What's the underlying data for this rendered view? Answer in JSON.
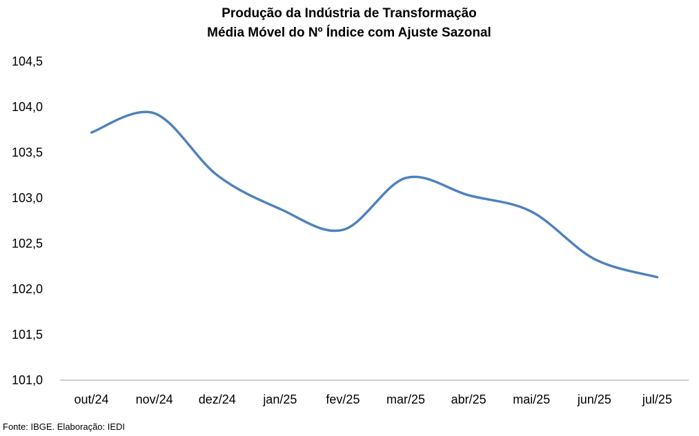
{
  "chart_data": {
    "type": "line",
    "title": "Produção da Indústria de Transformação",
    "subtitle": "Média Móvel do Nº Índice com Ajuste Sazonal",
    "xlabel": "",
    "ylabel": "",
    "categories": [
      "out/24",
      "nov/24",
      "dez/24",
      "jan/25",
      "fev/25",
      "mar/25",
      "abr/25",
      "mai/25",
      "jun/25",
      "jul/25"
    ],
    "series": [
      {
        "values": [
          103.72,
          103.93,
          103.25,
          102.88,
          102.65,
          103.22,
          103.03,
          102.85,
          102.33,
          102.13
        ],
        "color": "#4F81BD"
      }
    ],
    "ylim": [
      101.0,
      104.5
    ],
    "yticks": [
      "101,0",
      "101,5",
      "102,0",
      "102,5",
      "103,0",
      "103,5",
      "104,0",
      "104,5"
    ],
    "grid": false,
    "legend": "none"
  },
  "source": "Fonte: IBGE. Elaboração: IEDI"
}
